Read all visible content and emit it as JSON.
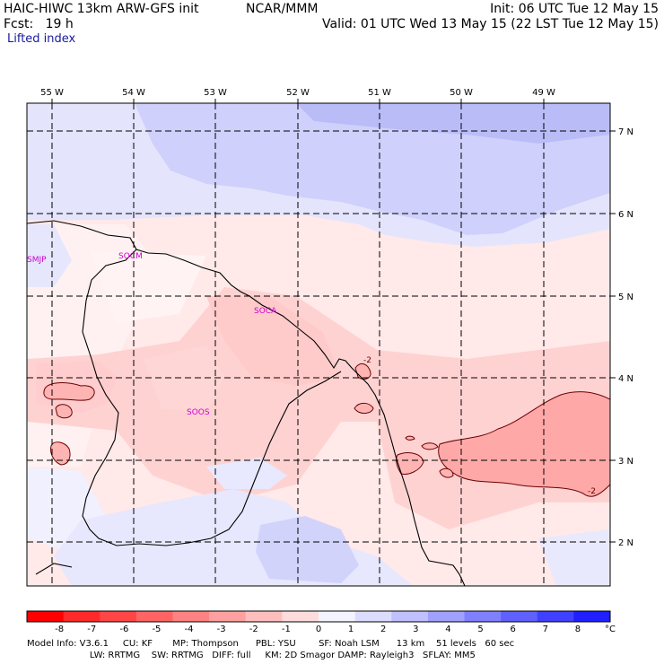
{
  "header": {
    "model": "HAIC-HIWC 13km ARW-GFS init",
    "org": "NCAR/MMM",
    "init": "Init: 06 UTC Tue 12 May 15",
    "fcst": "Fcst:   19 h",
    "valid": "Valid: 01 UTC Wed 13 May 15 (22 LST Tue 12 May 15)",
    "field": "Lifted index"
  },
  "map": {
    "lon_labels": [
      "55 W",
      "54 W",
      "53 W",
      "52 W",
      "51 W",
      "50 W",
      "49 W"
    ],
    "lat_labels": [
      "7 N",
      "6 N",
      "5 N",
      "4 N",
      "3 N",
      "2 N"
    ],
    "stations": [
      "SMJP",
      "SOCM",
      "SOCA",
      "SOOS"
    ],
    "contour_labels": [
      "-2",
      "-2"
    ]
  },
  "colorbar": {
    "ticks": [
      "-8",
      "-7",
      "-6",
      "-5",
      "-4",
      "-3",
      "-2",
      "-1",
      "0",
      "1",
      "2",
      "3",
      "4",
      "5",
      "6",
      "7",
      "8"
    ],
    "unit": "°C",
    "colors": [
      "#ff0000",
      "#ff2a2a",
      "#ff4646",
      "#ff6464",
      "#ff8282",
      "#ffa0a0",
      "#ffbebe",
      "#ffdcdc",
      "#f4f4ff",
      "#dcdcff",
      "#c0c0ff",
      "#a0a0ff",
      "#8080ff",
      "#6060ff",
      "#4040ff",
      "#2020ff"
    ]
  },
  "footer": {
    "line1": "Model Info: V3.6.1     CU: KF       MP: Thompson      PBL: YSU        SF: Noah LSM      13 km    51 levels   60 sec",
    "line2": "                      LW: RRTMG    SW: RRTMG   DIFF: full     KM: 2D Smagor DAMP: Rayleigh3   SFLAY: MM5"
  }
}
